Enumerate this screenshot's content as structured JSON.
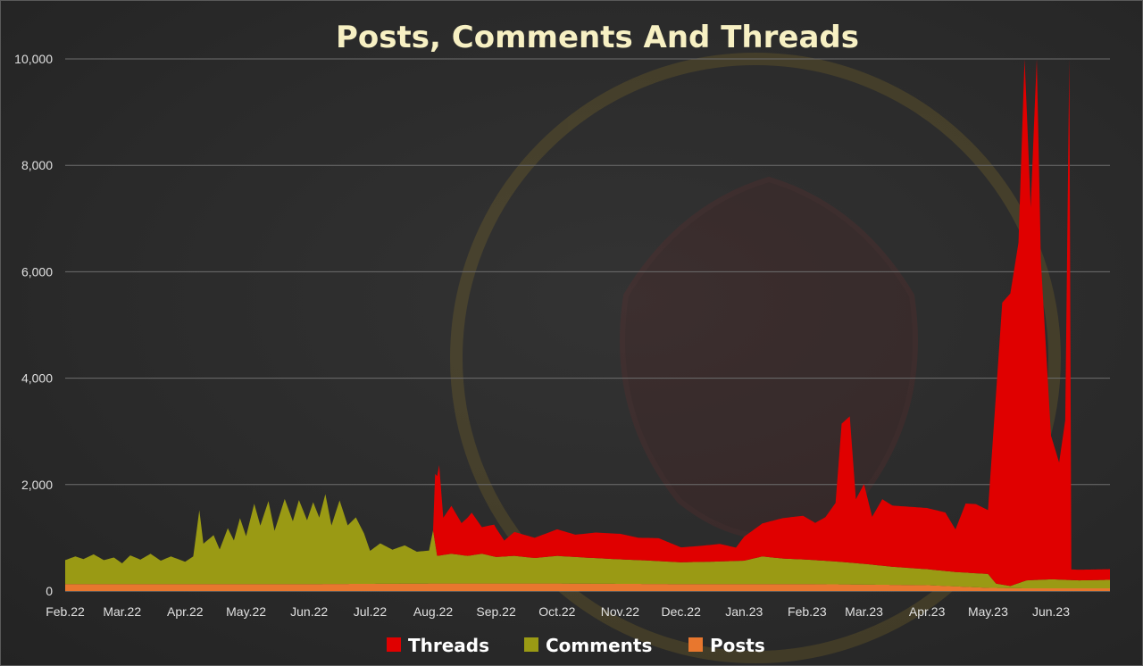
{
  "chart_data": {
    "type": "area",
    "title": "Posts, Comments And Threads",
    "xlabel": "",
    "ylabel": "",
    "ylim": [
      0,
      10000
    ],
    "y_ticks": [
      0,
      2000,
      4000,
      6000,
      8000,
      10000
    ],
    "y_tick_labels": [
      "0",
      "2,000",
      "4,000",
      "6,000",
      "8,000",
      "10,000"
    ],
    "x_range": [
      "2022-02-01",
      "2023-06-30"
    ],
    "x_ticks": [
      "2022-02-01",
      "2022-03-01",
      "2022-04-01",
      "2022-05-01",
      "2022-06-01",
      "2022-07-01",
      "2022-08-01",
      "2022-09-01",
      "2022-10-01",
      "2022-11-01",
      "2022-12-01",
      "2023-01-01",
      "2023-02-01",
      "2023-03-01",
      "2023-04-01",
      "2023-05-01",
      "2023-06-01"
    ],
    "x_tick_labels": [
      "Feb.22",
      "Mar.22",
      "Apr.22",
      "May.22",
      "Jun.22",
      "Jul.22",
      "Aug.22",
      "Sep.22",
      "Oct.22",
      "Nov.22",
      "Dec.22",
      "Jan.23",
      "Feb.23",
      "Mar.23",
      "Apr.23",
      "May.23",
      "Jun.23"
    ],
    "grid": true,
    "stacked": true,
    "legend_position": "bottom",
    "series": [
      {
        "name": "Posts",
        "color": "#e8772e",
        "points": [
          [
            "2022-02-01",
            130
          ],
          [
            "2022-04-01",
            130
          ],
          [
            "2022-06-01",
            130
          ],
          [
            "2022-08-01",
            140
          ],
          [
            "2022-10-01",
            140
          ],
          [
            "2022-12-01",
            130
          ],
          [
            "2023-02-01",
            130
          ],
          [
            "2023-04-01",
            110
          ],
          [
            "2023-05-01",
            60
          ],
          [
            "2023-05-20",
            50
          ],
          [
            "2023-06-30",
            50
          ]
        ]
      },
      {
        "name": "Comments",
        "color": "#9a9a14",
        "points": [
          [
            "2022-02-01",
            450
          ],
          [
            "2022-02-06",
            520
          ],
          [
            "2022-02-10",
            470
          ],
          [
            "2022-02-15",
            560
          ],
          [
            "2022-02-20",
            450
          ],
          [
            "2022-02-25",
            500
          ],
          [
            "2022-03-01",
            390
          ],
          [
            "2022-03-05",
            540
          ],
          [
            "2022-03-10",
            460
          ],
          [
            "2022-03-15",
            570
          ],
          [
            "2022-03-20",
            440
          ],
          [
            "2022-03-25",
            520
          ],
          [
            "2022-04-01",
            420
          ],
          [
            "2022-04-05",
            520
          ],
          [
            "2022-04-08",
            1390
          ],
          [
            "2022-04-10",
            760
          ],
          [
            "2022-04-15",
            920
          ],
          [
            "2022-04-18",
            650
          ],
          [
            "2022-04-22",
            1050
          ],
          [
            "2022-04-25",
            820
          ],
          [
            "2022-04-28",
            1240
          ],
          [
            "2022-05-01",
            900
          ],
          [
            "2022-05-05",
            1510
          ],
          [
            "2022-05-08",
            1100
          ],
          [
            "2022-05-12",
            1560
          ],
          [
            "2022-05-15",
            1000
          ],
          [
            "2022-05-20",
            1600
          ],
          [
            "2022-05-24",
            1180
          ],
          [
            "2022-05-27",
            1580
          ],
          [
            "2022-05-31",
            1200
          ],
          [
            "2022-06-03",
            1540
          ],
          [
            "2022-06-06",
            1250
          ],
          [
            "2022-06-09",
            1690
          ],
          [
            "2022-06-12",
            1100
          ],
          [
            "2022-06-16",
            1570
          ],
          [
            "2022-06-20",
            1100
          ],
          [
            "2022-06-24",
            1250
          ],
          [
            "2022-06-28",
            950
          ],
          [
            "2022-07-01",
            620
          ],
          [
            "2022-07-06",
            760
          ],
          [
            "2022-07-12",
            640
          ],
          [
            "2022-07-18",
            720
          ],
          [
            "2022-07-24",
            600
          ],
          [
            "2022-07-30",
            620
          ],
          [
            "2022-08-01",
            1000
          ],
          [
            "2022-08-03",
            520
          ],
          [
            "2022-08-10",
            560
          ],
          [
            "2022-08-18",
            520
          ],
          [
            "2022-08-25",
            560
          ],
          [
            "2022-09-01",
            500
          ],
          [
            "2022-09-10",
            520
          ],
          [
            "2022-09-20",
            480
          ],
          [
            "2022-10-01",
            520
          ],
          [
            "2022-10-15",
            490
          ],
          [
            "2022-11-01",
            460
          ],
          [
            "2022-11-15",
            440
          ],
          [
            "2022-12-01",
            410
          ],
          [
            "2022-12-15",
            420
          ],
          [
            "2023-01-01",
            440
          ],
          [
            "2023-01-10",
            520
          ],
          [
            "2023-01-20",
            480
          ],
          [
            "2023-02-01",
            460
          ],
          [
            "2023-02-15",
            430
          ],
          [
            "2023-03-01",
            390
          ],
          [
            "2023-03-15",
            340
          ],
          [
            "2023-04-01",
            300
          ],
          [
            "2023-04-15",
            270
          ],
          [
            "2023-05-01",
            260
          ],
          [
            "2023-05-05",
            80
          ],
          [
            "2023-05-12",
            40
          ],
          [
            "2023-05-20",
            150
          ],
          [
            "2023-06-01",
            170
          ],
          [
            "2023-06-15",
            150
          ],
          [
            "2023-06-30",
            160
          ]
        ]
      },
      {
        "name": "Threads",
        "color": "#e00000",
        "points": [
          [
            "2022-02-01",
            0
          ],
          [
            "2022-08-01",
            0
          ],
          [
            "2022-08-02",
            1300
          ],
          [
            "2022-08-04",
            1700
          ],
          [
            "2022-08-06",
            700
          ],
          [
            "2022-08-10",
            900
          ],
          [
            "2022-08-15",
            600
          ],
          [
            "2022-08-20",
            800
          ],
          [
            "2022-08-25",
            500
          ],
          [
            "2022-08-31",
            600
          ],
          [
            "2022-09-05",
            300
          ],
          [
            "2022-09-10",
            450
          ],
          [
            "2022-09-20",
            380
          ],
          [
            "2022-10-01",
            500
          ],
          [
            "2022-10-10",
            420
          ],
          [
            "2022-10-20",
            480
          ],
          [
            "2022-11-01",
            480
          ],
          [
            "2022-11-10",
            420
          ],
          [
            "2022-11-20",
            430
          ],
          [
            "2022-12-01",
            280
          ],
          [
            "2022-12-10",
            300
          ],
          [
            "2022-12-20",
            330
          ],
          [
            "2022-12-28",
            250
          ],
          [
            "2023-01-01",
            450
          ],
          [
            "2023-01-10",
            620
          ],
          [
            "2023-01-20",
            760
          ],
          [
            "2023-01-30",
            820
          ],
          [
            "2023-02-05",
            700
          ],
          [
            "2023-02-10",
            820
          ],
          [
            "2023-02-15",
            1100
          ],
          [
            "2023-02-18",
            2600
          ],
          [
            "2023-02-22",
            2750
          ],
          [
            "2023-02-25",
            1200
          ],
          [
            "2023-03-01",
            1500
          ],
          [
            "2023-03-05",
            900
          ],
          [
            "2023-03-10",
            1250
          ],
          [
            "2023-03-15",
            1150
          ],
          [
            "2023-03-20",
            1150
          ],
          [
            "2023-04-01",
            1150
          ],
          [
            "2023-04-10",
            1100
          ],
          [
            "2023-04-15",
            800
          ],
          [
            "2023-04-20",
            1300
          ],
          [
            "2023-04-25",
            1300
          ],
          [
            "2023-05-01",
            1200
          ],
          [
            "2023-05-05",
            3600
          ],
          [
            "2023-05-08",
            5300
          ],
          [
            "2023-05-12",
            5500
          ],
          [
            "2023-05-16",
            6400
          ],
          [
            "2023-05-19",
            9850
          ],
          [
            "2023-05-22",
            7000
          ],
          [
            "2023-05-25",
            9850
          ],
          [
            "2023-05-27",
            6000
          ],
          [
            "2023-06-01",
            2700
          ],
          [
            "2023-06-05",
            2200
          ],
          [
            "2023-06-08",
            3000
          ],
          [
            "2023-06-10",
            9850
          ],
          [
            "2023-06-11",
            200
          ],
          [
            "2023-06-30",
            200
          ]
        ]
      }
    ],
    "legend": [
      "Threads",
      "Comments",
      "Posts"
    ]
  }
}
